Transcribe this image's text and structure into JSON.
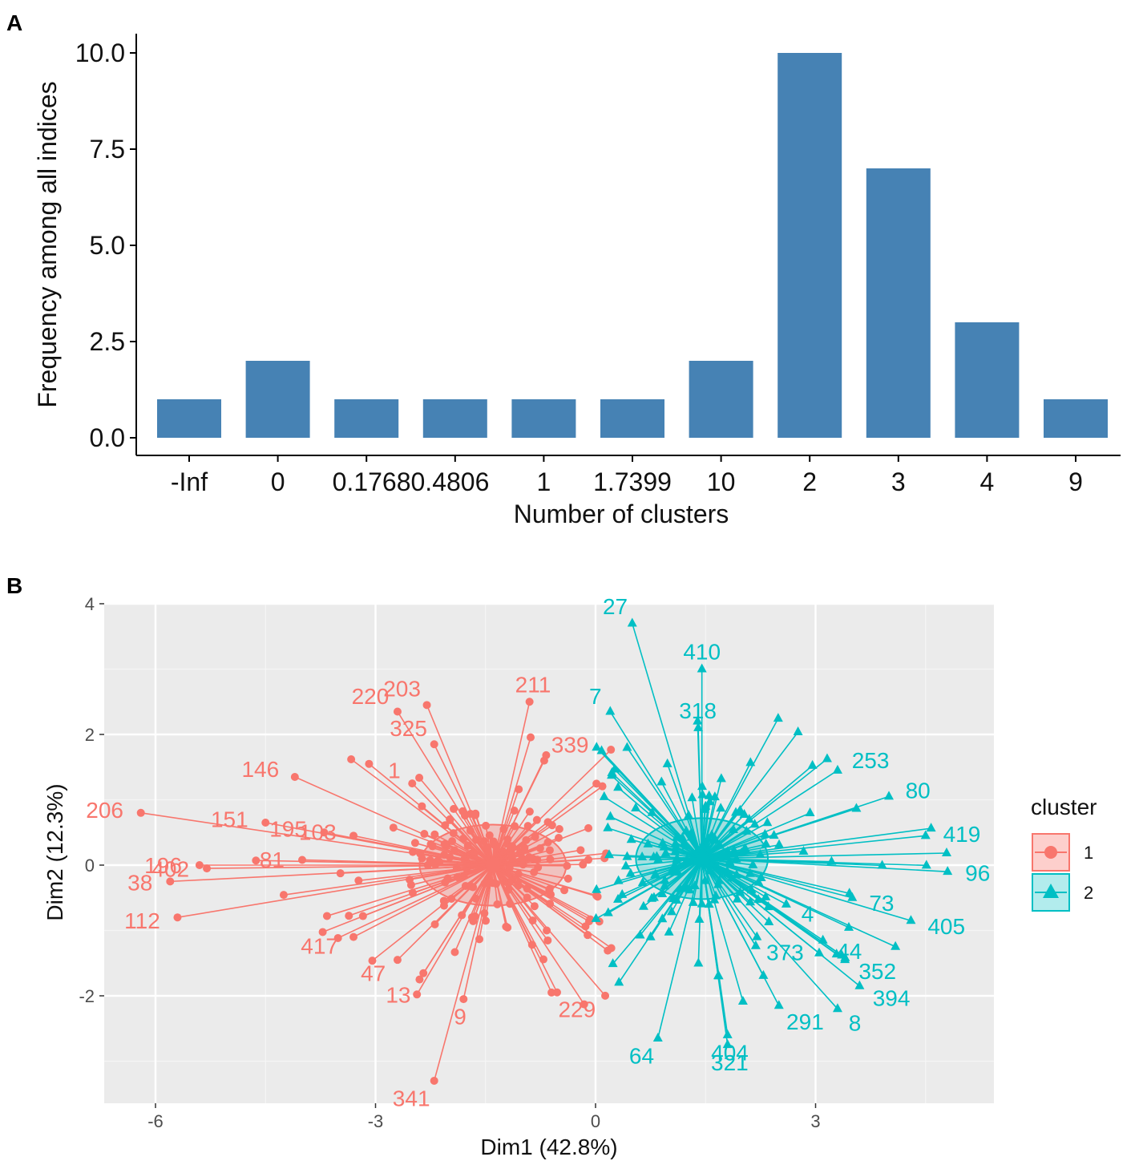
{
  "chart_data": [
    {
      "panel": "A",
      "type": "bar",
      "xlabel": "Number of clusters",
      "ylabel": "Frequency among all indices",
      "categories": [
        "-Inf",
        "0",
        "0.1768",
        "0.4806",
        "1",
        "1.7399",
        "10",
        "2",
        "3",
        "4",
        "9"
      ],
      "tick_labels": [
        "-Inf",
        "0",
        "0.17680.4806",
        "1",
        "1.7399",
        "10",
        "2",
        "3",
        "4",
        "9"
      ],
      "values": [
        1,
        2,
        1,
        1,
        1,
        1,
        2,
        10,
        7,
        3,
        1
      ],
      "ylim": [
        0,
        10.3
      ],
      "yticks": [
        "0.0",
        "2.5",
        "5.0",
        "7.5",
        "10.0"
      ],
      "bar_color": "#4682B4"
    },
    {
      "panel": "B",
      "type": "scatter",
      "xlabel": "Dim1 (42.8%)",
      "ylabel": "Dim2 (12.3%)",
      "xlim": [
        -6.6,
        5.5
      ],
      "ylim": [
        -3.6,
        4
      ],
      "xticks": [
        -6,
        -3,
        0,
        3
      ],
      "yticks": [
        -2,
        0,
        2,
        4
      ],
      "legend": {
        "title": "cluster",
        "entries": [
          "1",
          "2"
        ],
        "position": "right"
      },
      "colors": {
        "cluster1": "#F8766D",
        "cluster2": "#00BFC4"
      },
      "series": [
        {
          "name": "1",
          "centroid": [
            -1.4,
            0
          ],
          "ellipse": {
            "rx": 1.0,
            "ry": 0.62
          },
          "labeled_points": [
            {
              "label": "206",
              "x": -6.2,
              "y": 0.8
            },
            {
              "label": "196",
              "x": -5.4,
              "y": 0.0
            },
            {
              "label": "38",
              "x": -5.8,
              "y": -0.25
            },
            {
              "label": "402",
              "x": -5.3,
              "y": -0.05
            },
            {
              "label": "81",
              "x": -4.0,
              "y": 0.08
            },
            {
              "label": "112",
              "x": -5.7,
              "y": -0.8
            },
            {
              "label": "151",
              "x": -4.5,
              "y": 0.65
            },
            {
              "label": "195",
              "x": -3.7,
              "y": 0.5
            },
            {
              "label": "146",
              "x": -4.1,
              "y": 1.35
            },
            {
              "label": "103",
              "x": -3.3,
              "y": 0.45
            },
            {
              "label": "220",
              "x": -2.7,
              "y": 2.35
            },
            {
              "label": "203",
              "x": -2.3,
              "y": 2.45
            },
            {
              "label": "325",
              "x": -2.2,
              "y": 1.85
            },
            {
              "label": "1",
              "x": -2.5,
              "y": 1.25
            },
            {
              "label": "211",
              "x": -0.9,
              "y": 2.5
            },
            {
              "label": "339",
              "x": -0.7,
              "y": 1.6
            },
            {
              "label": "417",
              "x": -3.3,
              "y": -1.1
            },
            {
              "label": "47",
              "x": -2.7,
              "y": -1.45
            },
            {
              "label": "13",
              "x": -2.4,
              "y": -1.75
            },
            {
              "label": "9",
              "x": -1.8,
              "y": -2.05
            },
            {
              "label": "229",
              "x": -0.6,
              "y": -1.95
            },
            {
              "label": "341",
              "x": -2.2,
              "y": -3.3
            }
          ]
        },
        {
          "name": "2",
          "centroid": [
            1.45,
            0.1
          ],
          "ellipse": {
            "rx": 0.9,
            "ry": 0.62
          },
          "labeled_points": [
            {
              "label": "27",
              "x": 0.5,
              "y": 3.7
            },
            {
              "label": "410",
              "x": 1.45,
              "y": 3.0
            },
            {
              "label": "7",
              "x": 0.2,
              "y": 2.35
            },
            {
              "label": "318",
              "x": 1.4,
              "y": 2.1
            },
            {
              "label": "253",
              "x": 3.3,
              "y": 1.45
            },
            {
              "label": "419",
              "x": 4.5,
              "y": 0.45
            },
            {
              "label": "80",
              "x": 4.0,
              "y": 1.05
            },
            {
              "label": "96",
              "x": 4.8,
              "y": -0.1
            },
            {
              "label": "73",
              "x": 3.5,
              "y": -0.5
            },
            {
              "label": "405",
              "x": 4.3,
              "y": -0.85
            },
            {
              "label": "4",
              "x": 2.6,
              "y": -0.6
            },
            {
              "label": "373",
              "x": 2.2,
              "y": -1.1
            },
            {
              "label": "44",
              "x": 3.1,
              "y": -1.15
            },
            {
              "label": "352",
              "x": 3.4,
              "y": -1.45
            },
            {
              "label": "394",
              "x": 3.6,
              "y": -1.85
            },
            {
              "label": "291",
              "x": 2.5,
              "y": -2.15
            },
            {
              "label": "8",
              "x": 3.3,
              "y": -2.2
            },
            {
              "label": "404",
              "x": 1.8,
              "y": -2.6
            },
            {
              "label": "64",
              "x": 0.85,
              "y": -2.65
            },
            {
              "label": "321",
              "x": 1.8,
              "y": -2.75
            }
          ]
        }
      ]
    }
  ]
}
